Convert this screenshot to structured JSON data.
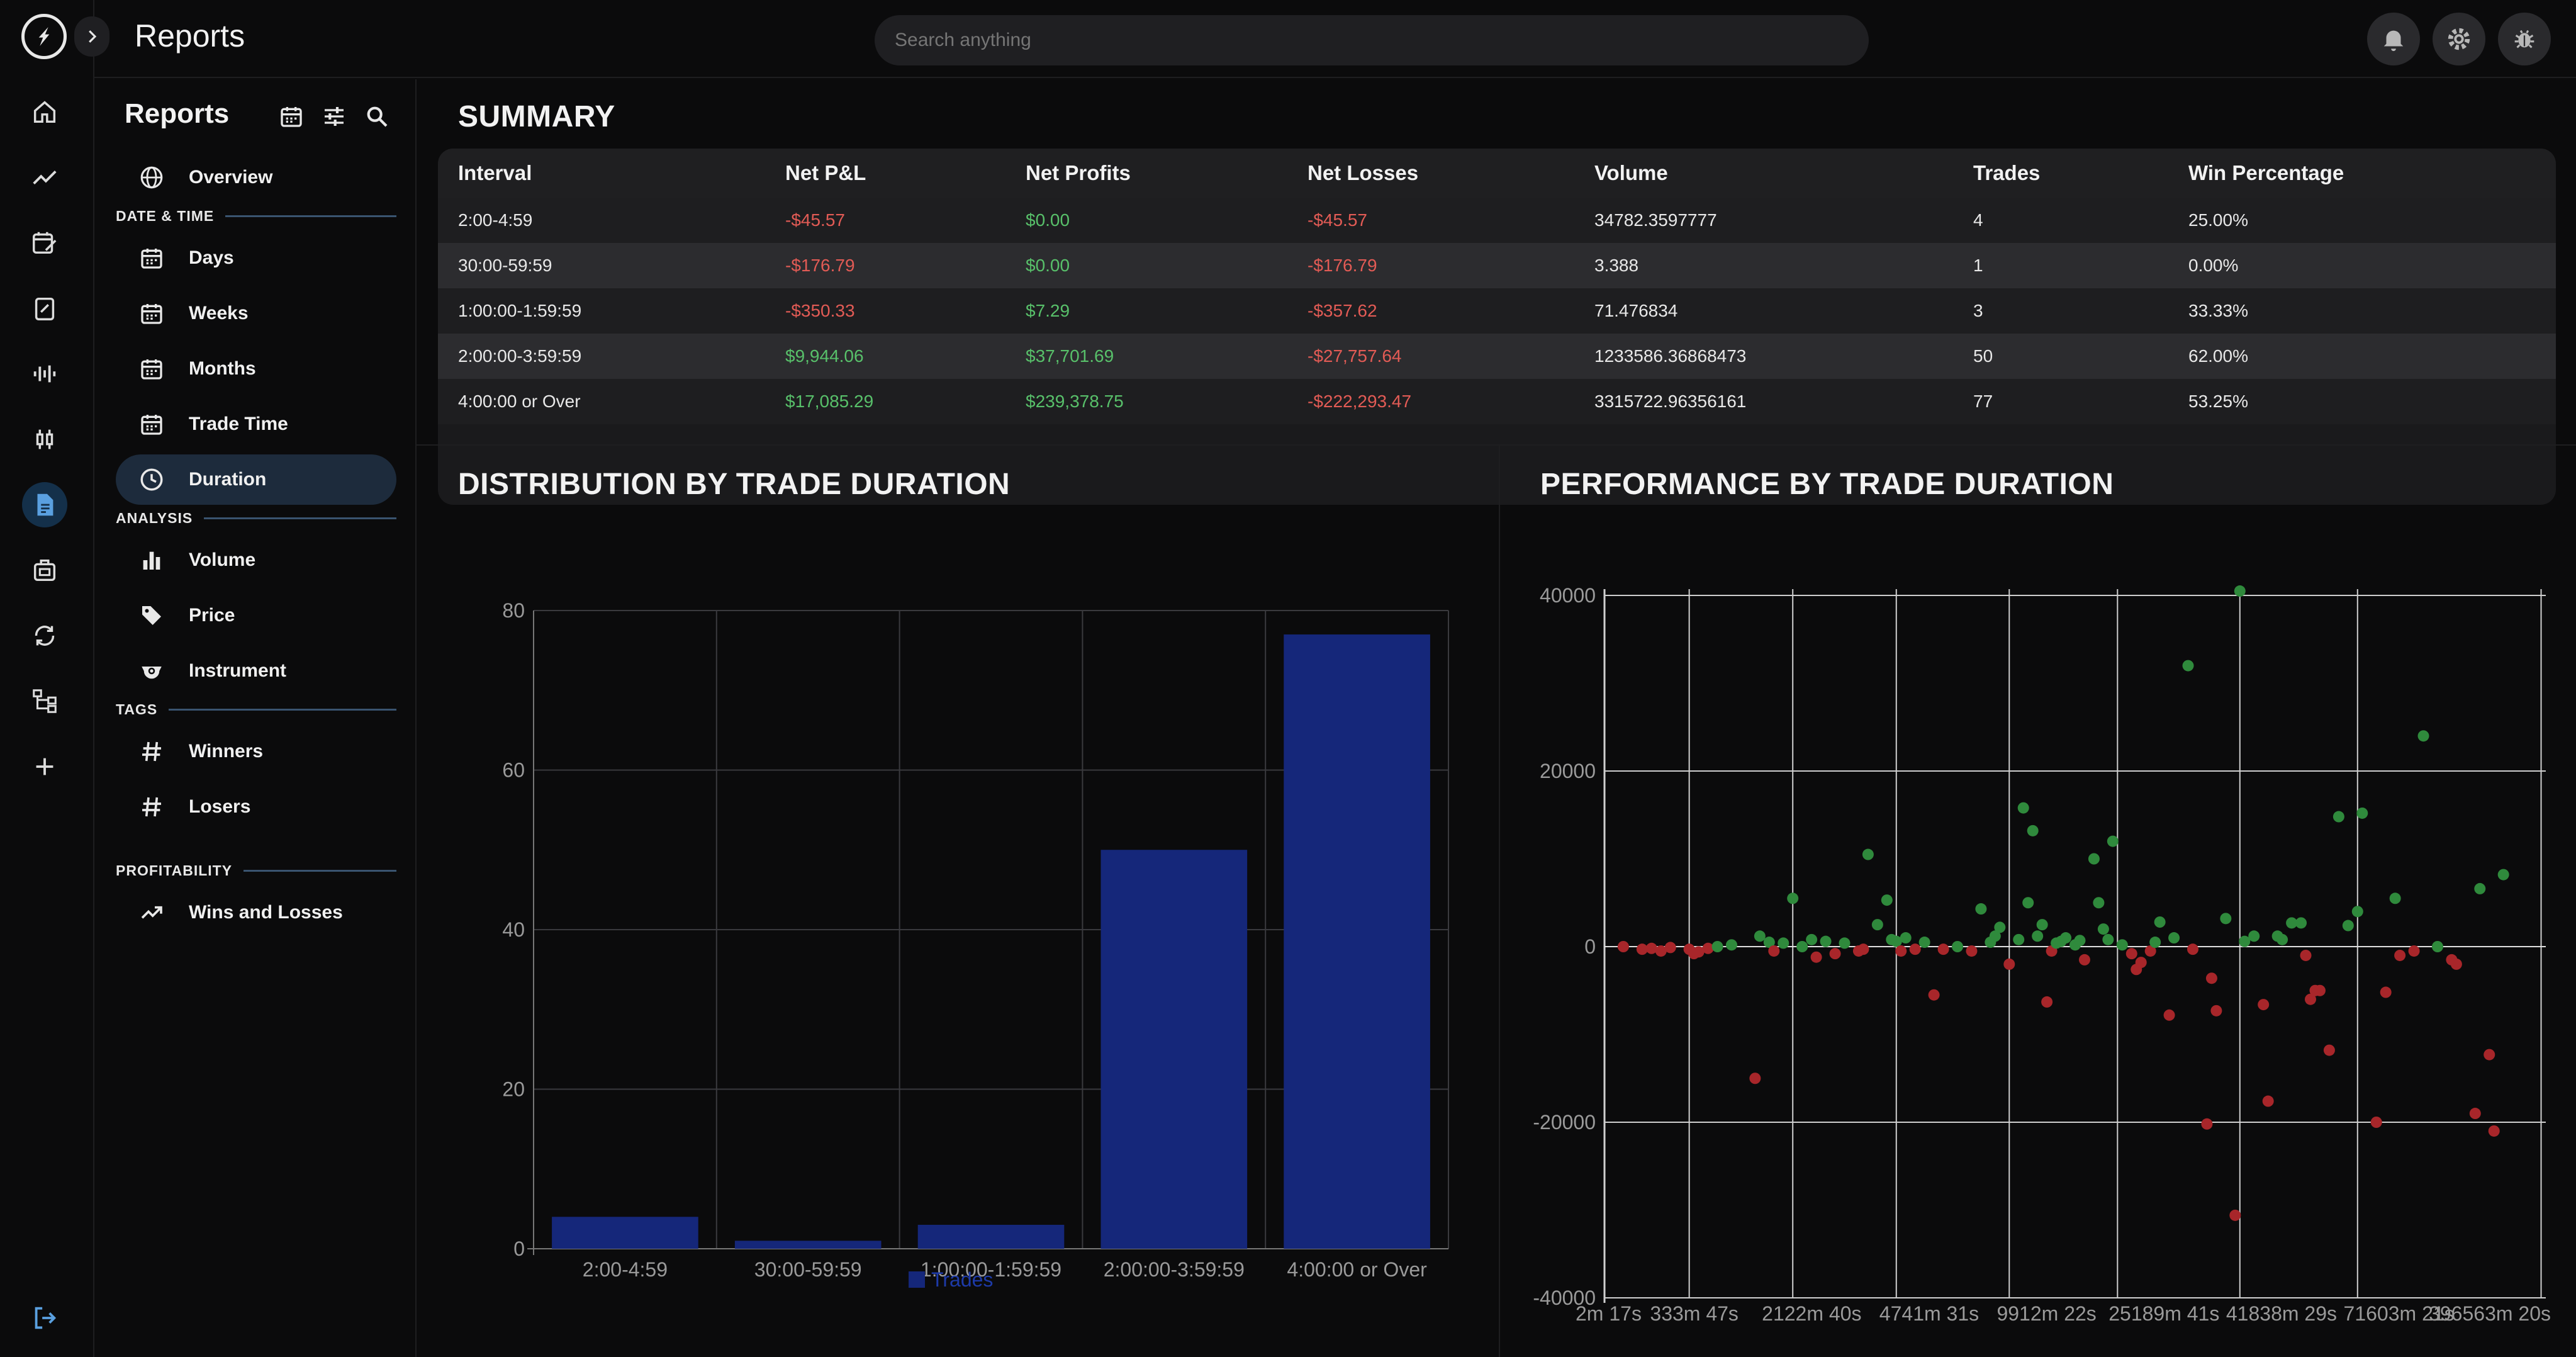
{
  "app": {
    "title": "Reports",
    "search_placeholder": "Search anything"
  },
  "rail": {
    "items": [
      "home-icon",
      "trend-icon",
      "calendar-edit-icon",
      "clipboard-icon",
      "waveform-icon",
      "candles-icon",
      "report-icon",
      "briefcase-icon",
      "sync-icon",
      "tree-icon",
      "plus-icon"
    ],
    "active": "report-icon",
    "bottom": "logout-icon"
  },
  "topbar": {
    "buttons": [
      "bell-icon",
      "gear-icon",
      "bug-icon"
    ]
  },
  "sidenav": {
    "title": "Reports",
    "tools": [
      "calendar-icon",
      "sliders-icon",
      "search-icon"
    ],
    "overview": "Overview",
    "sections": {
      "datetime": "DATE & TIME",
      "analysis": "ANALYSIS",
      "tags": "TAGS",
      "profitability": "PROFITABILITY"
    },
    "items": {
      "days": "Days",
      "weeks": "Weeks",
      "months": "Months",
      "trade_time": "Trade Time",
      "duration": "Duration",
      "volume": "Volume",
      "price": "Price",
      "instrument": "Instrument",
      "winners": "Winners",
      "losers": "Losers",
      "wins_losses": "Wins and Losses"
    },
    "active": "Duration"
  },
  "summary": {
    "title": "SUMMARY",
    "headers": [
      "Interval",
      "Net P&L",
      "Net Profits",
      "Net Losses",
      "Volume",
      "Trades",
      "Win Percentage"
    ],
    "rows": [
      [
        "2:00-4:59",
        "-$45.57",
        "$0.00",
        "-$45.57",
        "34782.3597777",
        "4",
        "25.00%"
      ],
      [
        "30:00-59:59",
        "-$176.79",
        "$0.00",
        "-$176.79",
        "3.388",
        "1",
        "0.00%"
      ],
      [
        "1:00:00-1:59:59",
        "-$350.33",
        "$7.29",
        "-$357.62",
        "71.476834",
        "3",
        "33.33%"
      ],
      [
        "2:00:00-3:59:59",
        "$9,944.06",
        "$37,701.69",
        "-$27,757.64",
        "1233586.36868473",
        "50",
        "62.00%"
      ],
      [
        "4:00:00 or Over",
        "$17,085.29",
        "$239,378.75",
        "-$222,293.47",
        "3315722.96356161",
        "77",
        "53.25%"
      ]
    ],
    "colors": {
      "negative": "#e25b55",
      "positive": "#58c06a"
    }
  },
  "chart_data": [
    {
      "type": "bar",
      "title": "DISTRIBUTION BY TRADE DURATION",
      "categories": [
        "2:00-4:59",
        "30:00-59:59",
        "1:00:00-1:59:59",
        "2:00:00-3:59:59",
        "4:00:00 or Over"
      ],
      "series": [
        {
          "name": "Trades",
          "values": [
            4,
            1,
            3,
            50,
            77
          ],
          "color": "#15277a"
        }
      ],
      "ylim": [
        0,
        80
      ],
      "yticks": [
        0,
        20,
        40,
        60,
        80
      ],
      "grid": true,
      "legend": "bottom-center"
    },
    {
      "type": "scatter",
      "title": "PERFORMANCE BY TRADE DURATION",
      "xlabels": [
        "2m 17s",
        "333m 47s",
        "2122m 40s",
        "4741m 31s",
        "9912m 22s",
        "25189m 41s",
        "41838m 29s",
        "71603m 21s",
        "396563m 20s"
      ],
      "ylim": [
        -40000,
        40000
      ],
      "yticks": [
        40000,
        20000,
        0,
        -20000,
        -40000
      ],
      "grid": true,
      "colors": {
        "win": "#2f8a3c",
        "loss": "#a8262a"
      },
      "points": [
        {
          "x": 0.02,
          "y": 0,
          "w": false
        },
        {
          "x": 0.04,
          "y": -300,
          "w": false
        },
        {
          "x": 0.05,
          "y": -200,
          "w": false
        },
        {
          "x": 0.06,
          "y": -500,
          "w": false
        },
        {
          "x": 0.07,
          "y": -100,
          "w": false
        },
        {
          "x": 0.09,
          "y": -300,
          "w": false
        },
        {
          "x": 0.095,
          "y": -800,
          "w": false
        },
        {
          "x": 0.1,
          "y": -600,
          "w": false
        },
        {
          "x": 0.11,
          "y": -200,
          "w": false
        },
        {
          "x": 0.12,
          "y": 0,
          "w": true
        },
        {
          "x": 0.135,
          "y": 200,
          "w": true
        },
        {
          "x": 0.16,
          "y": -15000,
          "w": false
        },
        {
          "x": 0.165,
          "y": 1200,
          "w": true
        },
        {
          "x": 0.175,
          "y": 500,
          "w": true
        },
        {
          "x": 0.18,
          "y": -500,
          "w": false
        },
        {
          "x": 0.19,
          "y": 400,
          "w": true
        },
        {
          "x": 0.2,
          "y": 5500,
          "w": true
        },
        {
          "x": 0.21,
          "y": 0,
          "w": true
        },
        {
          "x": 0.22,
          "y": 800,
          "w": true
        },
        {
          "x": 0.225,
          "y": -1200,
          "w": false
        },
        {
          "x": 0.235,
          "y": 600,
          "w": true
        },
        {
          "x": 0.245,
          "y": -800,
          "w": false
        },
        {
          "x": 0.255,
          "y": 400,
          "w": true
        },
        {
          "x": 0.27,
          "y": -500,
          "w": false
        },
        {
          "x": 0.275,
          "y": -300,
          "w": false
        },
        {
          "x": 0.28,
          "y": 10500,
          "w": true
        },
        {
          "x": 0.29,
          "y": 2500,
          "w": true
        },
        {
          "x": 0.3,
          "y": 5300,
          "w": true
        },
        {
          "x": 0.305,
          "y": 800,
          "w": true
        },
        {
          "x": 0.31,
          "y": 600,
          "w": true
        },
        {
          "x": 0.315,
          "y": -500,
          "w": false
        },
        {
          "x": 0.32,
          "y": 1000,
          "w": true
        },
        {
          "x": 0.33,
          "y": -300,
          "w": false
        },
        {
          "x": 0.34,
          "y": 500,
          "w": true
        },
        {
          "x": 0.35,
          "y": -5500,
          "w": false
        },
        {
          "x": 0.36,
          "y": -300,
          "w": false
        },
        {
          "x": 0.375,
          "y": 0,
          "w": true
        },
        {
          "x": 0.39,
          "y": -500,
          "w": false
        },
        {
          "x": 0.4,
          "y": 4300,
          "w": true
        },
        {
          "x": 0.41,
          "y": 500,
          "w": true
        },
        {
          "x": 0.415,
          "y": 1200,
          "w": true
        },
        {
          "x": 0.42,
          "y": 2200,
          "w": true
        },
        {
          "x": 0.43,
          "y": -2000,
          "w": false
        },
        {
          "x": 0.44,
          "y": 800,
          "w": true
        },
        {
          "x": 0.445,
          "y": 15800,
          "w": true
        },
        {
          "x": 0.45,
          "y": 5000,
          "w": true
        },
        {
          "x": 0.455,
          "y": 13200,
          "w": true
        },
        {
          "x": 0.46,
          "y": 1200,
          "w": true
        },
        {
          "x": 0.465,
          "y": 2500,
          "w": true
        },
        {
          "x": 0.47,
          "y": -6300,
          "w": false
        },
        {
          "x": 0.475,
          "y": -500,
          "w": false
        },
        {
          "x": 0.48,
          "y": 400,
          "w": true
        },
        {
          "x": 0.485,
          "y": 600,
          "w": true
        },
        {
          "x": 0.49,
          "y": 1000,
          "w": true
        },
        {
          "x": 0.5,
          "y": 200,
          "w": true
        },
        {
          "x": 0.505,
          "y": 700,
          "w": true
        },
        {
          "x": 0.51,
          "y": -1500,
          "w": false
        },
        {
          "x": 0.52,
          "y": 10000,
          "w": true
        },
        {
          "x": 0.525,
          "y": 5000,
          "w": true
        },
        {
          "x": 0.53,
          "y": 2000,
          "w": true
        },
        {
          "x": 0.535,
          "y": 800,
          "w": true
        },
        {
          "x": 0.54,
          "y": 12000,
          "w": true
        },
        {
          "x": 0.55,
          "y": 200,
          "w": true
        },
        {
          "x": 0.56,
          "y": -800,
          "w": false
        },
        {
          "x": 0.565,
          "y": -2600,
          "w": false
        },
        {
          "x": 0.57,
          "y": -1800,
          "w": false
        },
        {
          "x": 0.58,
          "y": -500,
          "w": false
        },
        {
          "x": 0.585,
          "y": 500,
          "w": true
        },
        {
          "x": 0.59,
          "y": 2800,
          "w": true
        },
        {
          "x": 0.6,
          "y": -7800,
          "w": false
        },
        {
          "x": 0.605,
          "y": 1000,
          "w": true
        },
        {
          "x": 0.62,
          "y": 32000,
          "w": true
        },
        {
          "x": 0.625,
          "y": -300,
          "w": false
        },
        {
          "x": 0.64,
          "y": -20200,
          "w": false
        },
        {
          "x": 0.645,
          "y": -3600,
          "w": false
        },
        {
          "x": 0.65,
          "y": -7300,
          "w": false
        },
        {
          "x": 0.66,
          "y": 3200,
          "w": true
        },
        {
          "x": 0.67,
          "y": -30600,
          "w": false
        },
        {
          "x": 0.675,
          "y": 40500,
          "w": true
        },
        {
          "x": 0.68,
          "y": 600,
          "w": true
        },
        {
          "x": 0.69,
          "y": 1200,
          "w": true
        },
        {
          "x": 0.7,
          "y": -6600,
          "w": false
        },
        {
          "x": 0.705,
          "y": -17600,
          "w": false
        },
        {
          "x": 0.715,
          "y": 1200,
          "w": true
        },
        {
          "x": 0.72,
          "y": 800,
          "w": true
        },
        {
          "x": 0.73,
          "y": 2700,
          "w": true
        },
        {
          "x": 0.74,
          "y": 2700,
          "w": true
        },
        {
          "x": 0.745,
          "y": -1000,
          "w": false
        },
        {
          "x": 0.75,
          "y": -6000,
          "w": false
        },
        {
          "x": 0.755,
          "y": -5000,
          "w": false
        },
        {
          "x": 0.76,
          "y": -5000,
          "w": false
        },
        {
          "x": 0.77,
          "y": -11800,
          "w": false
        },
        {
          "x": 0.78,
          "y": 14800,
          "w": true
        },
        {
          "x": 0.79,
          "y": 2400,
          "w": true
        },
        {
          "x": 0.8,
          "y": 4000,
          "w": true
        },
        {
          "x": 0.805,
          "y": 15200,
          "w": true
        },
        {
          "x": 0.82,
          "y": -20000,
          "w": false
        },
        {
          "x": 0.83,
          "y": -5200,
          "w": false
        },
        {
          "x": 0.84,
          "y": 5500,
          "w": true
        },
        {
          "x": 0.845,
          "y": -1000,
          "w": false
        },
        {
          "x": 0.86,
          "y": -500,
          "w": false
        },
        {
          "x": 0.87,
          "y": 24000,
          "w": true
        },
        {
          "x": 0.885,
          "y": 0,
          "w": true
        },
        {
          "x": 0.9,
          "y": -1500,
          "w": false
        },
        {
          "x": 0.905,
          "y": -2000,
          "w": false
        },
        {
          "x": 0.925,
          "y": -19000,
          "w": false
        },
        {
          "x": 0.93,
          "y": 6600,
          "w": true
        },
        {
          "x": 0.94,
          "y": -12300,
          "w": false
        },
        {
          "x": 0.945,
          "y": -21000,
          "w": false
        },
        {
          "x": 0.955,
          "y": 8200,
          "w": true
        }
      ]
    }
  ]
}
